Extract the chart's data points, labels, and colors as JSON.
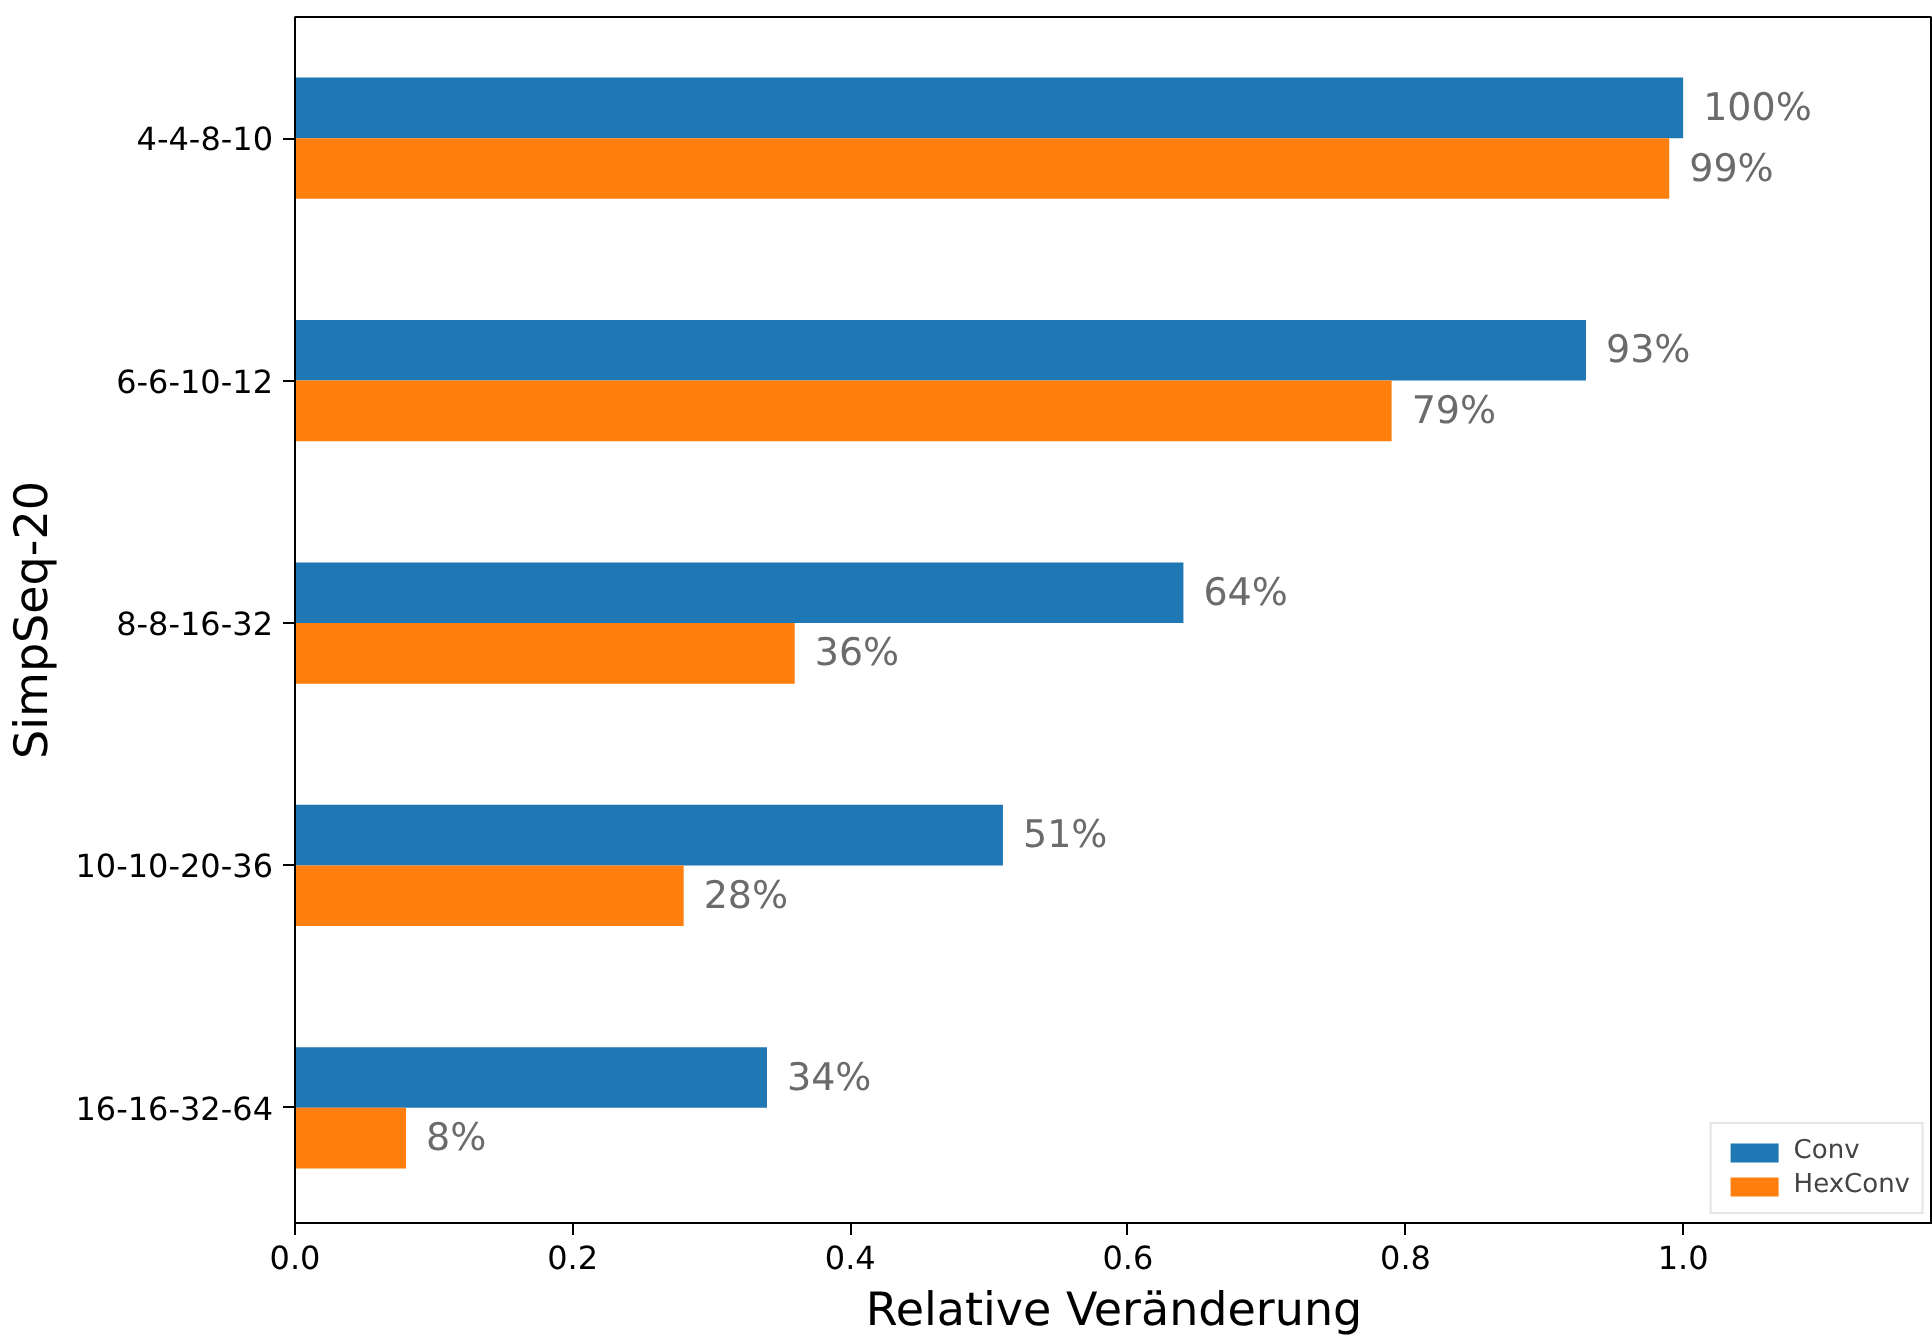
{
  "chart_data": {
    "type": "bar",
    "orientation": "horizontal",
    "xlabel": "Relative Veränderung",
    "ylabel": "SimpSeq-20",
    "categories": [
      "4-4-8-10",
      "6-6-10-12",
      "8-8-16-32",
      "10-10-20-36",
      "16-16-32-64"
    ],
    "series": [
      {
        "name": "Conv",
        "color": "#1f77b4",
        "values": [
          1.0,
          0.93,
          0.64,
          0.51,
          0.34
        ],
        "value_labels": [
          "100%",
          "93%",
          "64%",
          "51%",
          "34%"
        ]
      },
      {
        "name": "HexConv",
        "color": "#ff7f0e",
        "values": [
          0.99,
          0.79,
          0.36,
          0.28,
          0.08
        ],
        "value_labels": [
          "99%",
          "79%",
          "36%",
          "28%",
          "8%"
        ]
      }
    ],
    "xlim": [
      0,
      1.18
    ],
    "xticks": [
      {
        "value": 0,
        "label": "0.0"
      },
      {
        "value": 0.2,
        "label": "0.2"
      },
      {
        "value": 0.4,
        "label": "0.4"
      },
      {
        "value": 0.6,
        "label": "0.6"
      },
      {
        "value": 0.8,
        "label": "0.8"
      },
      {
        "value": 1.0,
        "label": "1.0"
      }
    ],
    "grid": false,
    "legend": "bottom right"
  }
}
